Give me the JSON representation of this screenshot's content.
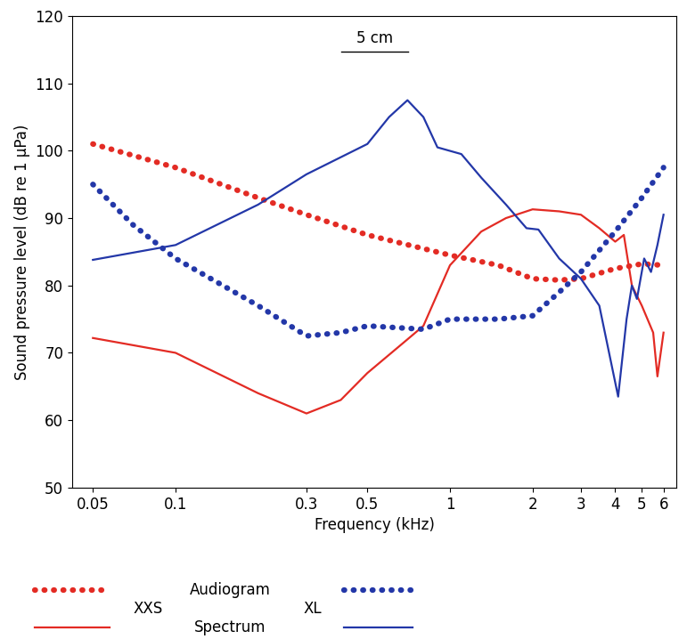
{
  "chart_data": {
    "type": "line",
    "x_label": "Frequency (kHz)",
    "y_label": "Sound pressure level (dB re 1 µPa)",
    "annotations": [
      "5 cm"
    ],
    "log": "x",
    "grid": false,
    "xlim": [
      0.042,
      6.7
    ],
    "xticks": [
      0.05,
      0.1,
      0.3,
      0.5,
      1,
      2,
      3,
      4,
      5,
      6
    ],
    "ylim": [
      50,
      120
    ],
    "yticks": [
      50,
      60,
      70,
      80,
      90,
      100,
      110,
      120
    ],
    "series": [
      {
        "name": "XXS",
        "group": "Audiogram",
        "color": "#e32b24",
        "line_style": "dotted",
        "x": [
          0.05,
          0.1,
          0.2,
          0.3,
          0.5,
          1,
          1.5,
          2,
          2.5,
          3,
          4,
          5,
          6
        ],
        "values": [
          101,
          97.5,
          93,
          90.5,
          87.5,
          84.5,
          83,
          81,
          80.8,
          81,
          82.5,
          83.2,
          83
        ]
      },
      {
        "name": "XXS",
        "group": "Spectrum",
        "color": "#e32b24",
        "line_style": "solid",
        "x": [
          0.05,
          0.1,
          0.2,
          0.3,
          0.4,
          0.5,
          0.7,
          0.8,
          1,
          1.3,
          1.6,
          2,
          2.5,
          3,
          3.5,
          4,
          4.3,
          4.6,
          5,
          5.5,
          5.7,
          6
        ],
        "values": [
          72.2,
          70,
          64,
          61,
          63,
          67,
          72,
          74,
          83,
          88,
          90,
          91.3,
          91,
          90.5,
          88.5,
          86.5,
          87.5,
          80,
          77,
          73,
          66.5,
          73
        ]
      },
      {
        "name": "XL",
        "group": "Audiogram",
        "color": "#2337a8",
        "line_style": "dotted",
        "x": [
          0.05,
          0.07,
          0.1,
          0.2,
          0.3,
          0.4,
          0.5,
          0.8,
          1,
          1.5,
          2,
          2.5,
          3,
          4,
          5,
          6
        ],
        "values": [
          95,
          89,
          84,
          77,
          72.5,
          73,
          74,
          73.5,
          75,
          75,
          75.5,
          79,
          82,
          88,
          93,
          97.5
        ]
      },
      {
        "name": "XL",
        "group": "Spectrum",
        "color": "#2337a8",
        "line_style": "solid",
        "x": [
          0.05,
          0.1,
          0.2,
          0.3,
          0.5,
          0.6,
          0.7,
          0.8,
          0.9,
          1.1,
          1.3,
          1.6,
          1.9,
          2.1,
          2.5,
          3,
          3.5,
          4.1,
          4.4,
          4.6,
          4.8,
          5.1,
          5.4,
          5.7,
          6
        ],
        "values": [
          83.8,
          86,
          92,
          96.5,
          101,
          105,
          107.5,
          105,
          100.5,
          99.5,
          96,
          92,
          88.5,
          88.3,
          84,
          81,
          77,
          63.5,
          75,
          80,
          78,
          84,
          82,
          86,
          90.5
        ]
      }
    ]
  }
}
